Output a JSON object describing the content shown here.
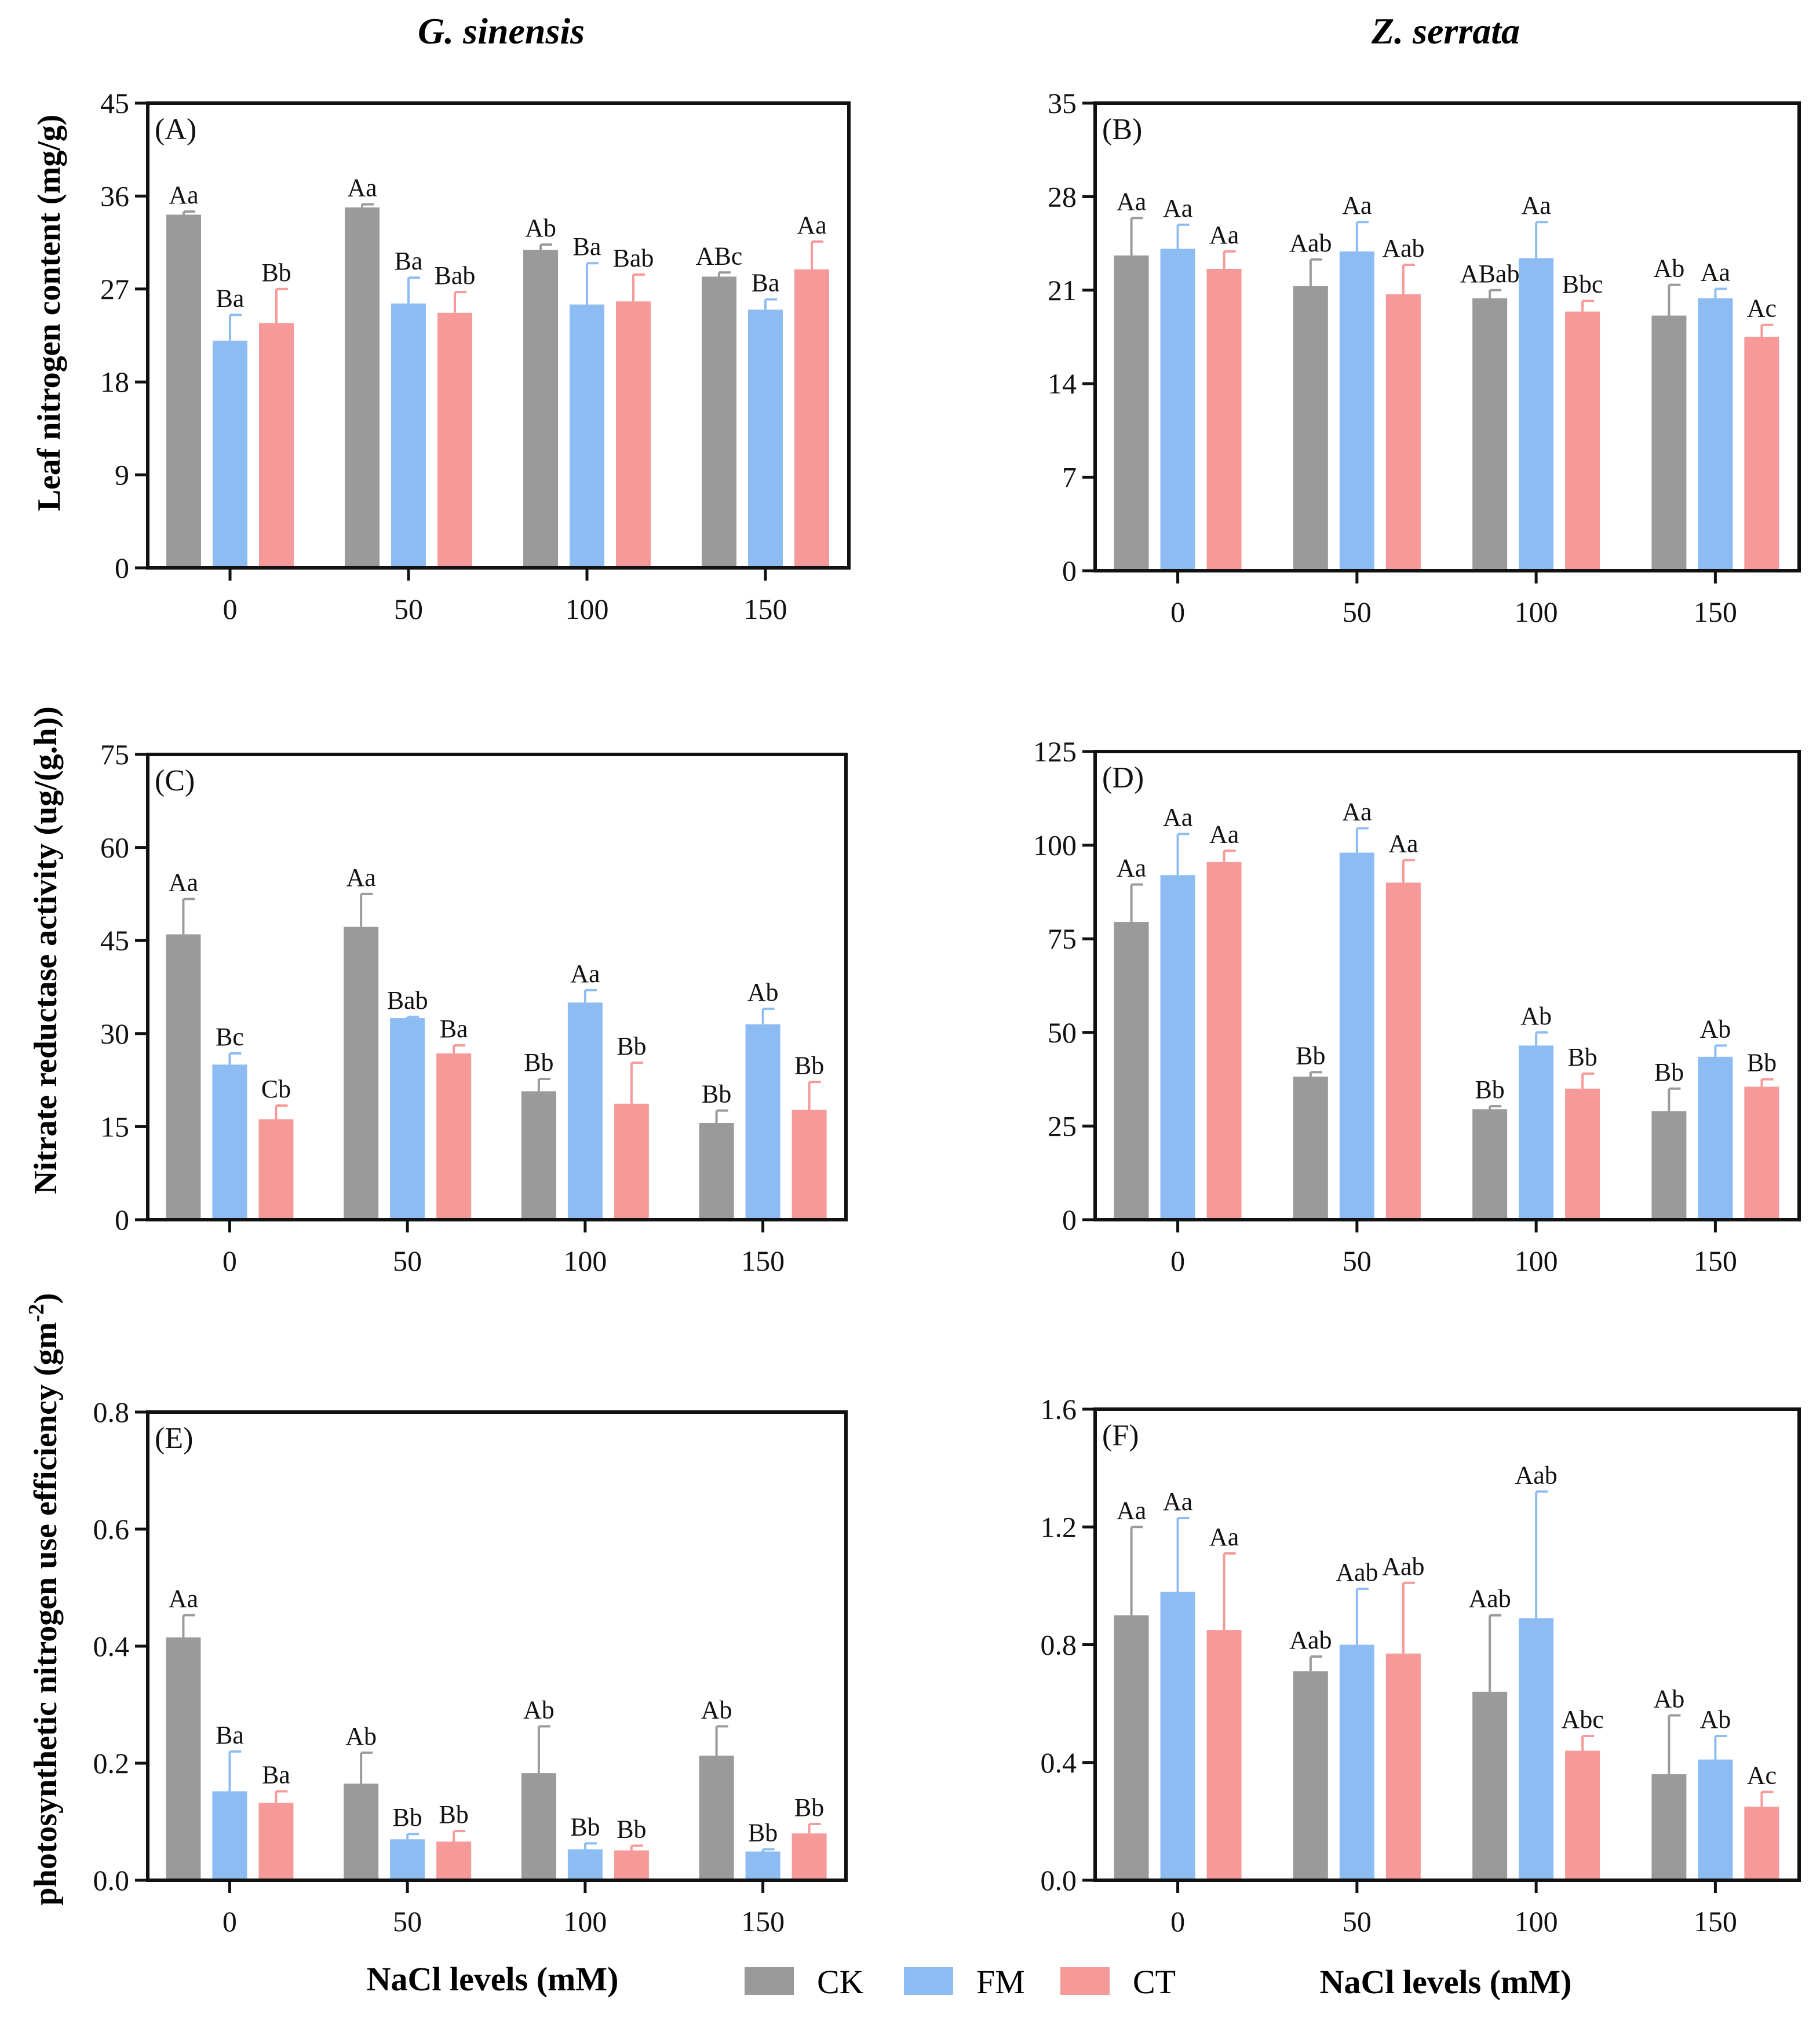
{
  "column_titles": {
    "left": "G. sinensis",
    "right": "Z. serrata"
  },
  "y_axis_labels": {
    "row1": "Leaf nitrogen content (mg/g)",
    "row2": "Nitrate reductase activity (ug/(g.h))",
    "row3": "photosynthetic nitrogen use efficiency (gm",
    "row3_sup": "-2",
    "row3_close": ")"
  },
  "x_axis_label": "NaCl levels (mM)",
  "legend": [
    {
      "label": "CK",
      "color": "#9a9a9a"
    },
    {
      "label": "FM",
      "color": "#8dbcf2"
    },
    {
      "label": "CT",
      "color": "#f59a99"
    }
  ],
  "chart_data": [
    {
      "panel": "(A)",
      "type": "bar",
      "categories": [
        "0",
        "50",
        "100",
        "150"
      ],
      "ylim": [
        0,
        45
      ],
      "yticks": [
        "0",
        "9",
        "18",
        "27",
        "36",
        "45"
      ],
      "series": [
        {
          "name": "CK",
          "values": [
            34.2,
            34.9,
            30.8,
            28.2
          ],
          "errors": [
            0.3,
            0.3,
            0.5,
            0.4
          ],
          "labels": [
            "Aa",
            "Aa",
            "Ab",
            "ABc"
          ]
        },
        {
          "name": "FM",
          "values": [
            22.0,
            25.6,
            25.5,
            25.0
          ],
          "errors": [
            2.5,
            2.5,
            4.0,
            1.0
          ],
          "labels": [
            "Ba",
            "Ba",
            "Ba",
            "Ba"
          ]
        },
        {
          "name": "CT",
          "values": [
            23.7,
            24.7,
            25.8,
            28.9
          ],
          "errors": [
            3.3,
            2.0,
            2.6,
            2.7
          ],
          "labels": [
            "Bb",
            "Bab",
            "Bab",
            "Aa"
          ]
        }
      ]
    },
    {
      "panel": "(B)",
      "type": "bar",
      "categories": [
        "0",
        "50",
        "100",
        "150"
      ],
      "ylim": [
        0,
        35
      ],
      "yticks": [
        "0",
        "7",
        "14",
        "21",
        "28",
        "35"
      ],
      "series": [
        {
          "name": "CK",
          "values": [
            23.6,
            21.3,
            20.4,
            19.1
          ],
          "errors": [
            2.8,
            2.0,
            0.6,
            2.3
          ],
          "labels": [
            "Aa",
            "Aab",
            "ABab",
            "Ab"
          ]
        },
        {
          "name": "FM",
          "values": [
            24.1,
            23.9,
            23.4,
            20.4
          ],
          "errors": [
            1.8,
            2.2,
            2.7,
            0.7
          ],
          "labels": [
            "Aa",
            "Aa",
            "Aa",
            "Aa"
          ]
        },
        {
          "name": "CT",
          "values": [
            22.6,
            20.7,
            19.4,
            17.5
          ],
          "errors": [
            1.3,
            2.2,
            0.8,
            0.9
          ],
          "labels": [
            "Aa",
            "Aab",
            "Bbc",
            "Ac"
          ]
        }
      ]
    },
    {
      "panel": "(C)",
      "type": "bar",
      "categories": [
        "0",
        "50",
        "100",
        "150"
      ],
      "ylim": [
        0,
        75
      ],
      "yticks": [
        "0",
        "15",
        "30",
        "45",
        "60",
        "75"
      ],
      "series": [
        {
          "name": "CK",
          "values": [
            46.0,
            47.2,
            20.7,
            15.6
          ],
          "errors": [
            5.7,
            5.3,
            2.0,
            2.0
          ],
          "labels": [
            "Aa",
            "Aa",
            "Bb",
            "Bb"
          ]
        },
        {
          "name": "FM",
          "values": [
            25.0,
            32.5,
            35.0,
            31.5
          ],
          "errors": [
            1.8,
            0.2,
            2.0,
            2.5
          ],
          "labels": [
            "Bc",
            "Bab",
            "Aa",
            "Ab"
          ]
        },
        {
          "name": "CT",
          "values": [
            16.2,
            26.8,
            18.7,
            17.7
          ],
          "errors": [
            2.2,
            1.3,
            6.6,
            4.5
          ],
          "labels": [
            "Cb",
            "Ba",
            "Bb",
            "Bb"
          ]
        }
      ]
    },
    {
      "panel": "(D)",
      "type": "bar",
      "categories": [
        "0",
        "50",
        "100",
        "150"
      ],
      "ylim": [
        0,
        125
      ],
      "yticks": [
        "0",
        "25",
        "50",
        "75",
        "100",
        "125"
      ],
      "series": [
        {
          "name": "CK",
          "values": [
            79.5,
            38.2,
            29.5,
            29.0
          ],
          "errors": [
            10.0,
            1.2,
            0.8,
            6.0
          ],
          "labels": [
            "Aa",
            "Bb",
            "Bb",
            "Bb"
          ]
        },
        {
          "name": "FM",
          "values": [
            92.0,
            98.0,
            46.5,
            43.5
          ],
          "errors": [
            11.0,
            6.5,
            3.5,
            3.0
          ],
          "labels": [
            "Aa",
            "Aa",
            "Ab",
            "Ab"
          ]
        },
        {
          "name": "CT",
          "values": [
            95.5,
            90.0,
            35.0,
            35.5
          ],
          "errors": [
            3.0,
            6.0,
            4.0,
            2.0
          ],
          "labels": [
            "Aa",
            "Aa",
            "Bb",
            "Bb"
          ]
        }
      ]
    },
    {
      "panel": "(E)",
      "type": "bar",
      "categories": [
        "0",
        "50",
        "100",
        "150"
      ],
      "ylim": [
        0,
        0.8
      ],
      "yticks": [
        "0.0",
        "0.2",
        "0.4",
        "0.6",
        "0.8"
      ],
      "series": [
        {
          "name": "CK",
          "values": [
            0.415,
            0.165,
            0.183,
            0.213
          ],
          "errors": [
            0.038,
            0.053,
            0.08,
            0.05
          ],
          "labels": [
            "Aa",
            "Ab",
            "Ab",
            "Ab"
          ]
        },
        {
          "name": "FM",
          "values": [
            0.152,
            0.07,
            0.053,
            0.049
          ],
          "errors": [
            0.068,
            0.009,
            0.01,
            0.004
          ],
          "labels": [
            "Ba",
            "Bb",
            "Bb",
            "Bb"
          ]
        },
        {
          "name": "CT",
          "values": [
            0.132,
            0.066,
            0.051,
            0.08
          ],
          "errors": [
            0.02,
            0.018,
            0.008,
            0.016
          ],
          "labels": [
            "Ba",
            "Bb",
            "Bb",
            "Bb"
          ]
        }
      ]
    },
    {
      "panel": "(F)",
      "type": "bar",
      "categories": [
        "0",
        "50",
        "100",
        "150"
      ],
      "ylim": [
        0,
        1.6
      ],
      "yticks": [
        "0.0",
        "0.4",
        "0.8",
        "1.2",
        "1.6"
      ],
      "series": [
        {
          "name": "CK",
          "values": [
            0.9,
            0.71,
            0.64,
            0.36
          ],
          "errors": [
            0.3,
            0.05,
            0.26,
            0.2
          ],
          "labels": [
            "Aa",
            "Aab",
            "Aab",
            "Ab"
          ]
        },
        {
          "name": "FM",
          "values": [
            0.98,
            0.8,
            0.89,
            0.41
          ],
          "errors": [
            0.25,
            0.19,
            0.43,
            0.08
          ],
          "labels": [
            "Aa",
            "Aab",
            "Aab",
            "Ab"
          ]
        },
        {
          "name": "CT",
          "values": [
            0.85,
            0.77,
            0.44,
            0.25
          ],
          "errors": [
            0.26,
            0.24,
            0.05,
            0.05
          ],
          "labels": [
            "Aa",
            "Aab",
            "Abc",
            "Ac"
          ]
        }
      ]
    }
  ]
}
